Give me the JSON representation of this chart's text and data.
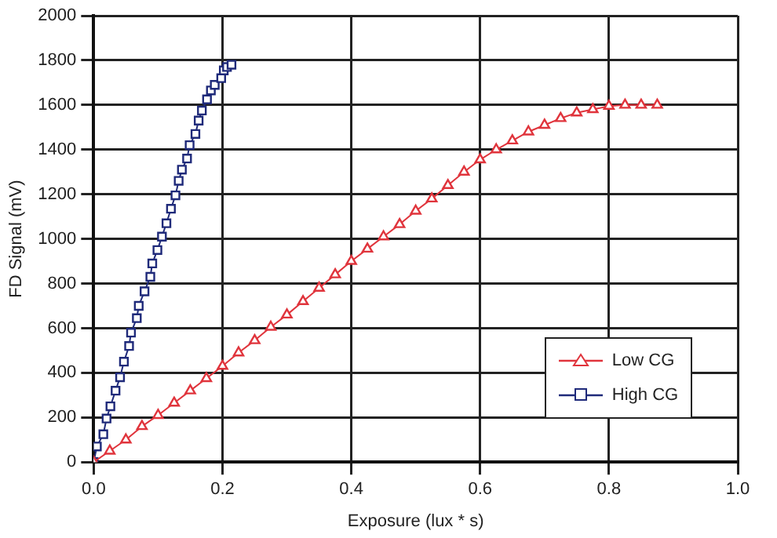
{
  "chart_data": {
    "type": "line",
    "xlabel": "Exposure (lux * s)",
    "ylabel": "FD Signal (mV)",
    "xlim": [
      0,
      1
    ],
    "xticks": [
      {
        "value": 0,
        "label": "0.0"
      },
      {
        "value": 0.2,
        "label": "0.2"
      },
      {
        "value": 0.4,
        "label": "0.4"
      },
      {
        "value": 0.6,
        "label": "0.6"
      },
      {
        "value": 0.8,
        "label": "0.8"
      },
      {
        "value": 1,
        "label": "1.0"
      }
    ],
    "ylim": [
      0,
      2000
    ],
    "yticks": [
      0,
      200,
      400,
      600,
      800,
      1000,
      1200,
      1400,
      1600,
      1800,
      2000
    ],
    "grid": true,
    "legend": "right",
    "series": [
      {
        "name": "Low CG",
        "color": "#e0343c",
        "marker": "triangle",
        "x": [
          0,
          0.025,
          0.05,
          0.075,
          0.1,
          0.125,
          0.15,
          0.175,
          0.2,
          0.225,
          0.25,
          0.275,
          0.3,
          0.325,
          0.35,
          0.375,
          0.4,
          0.425,
          0.45,
          0.475,
          0.5,
          0.525,
          0.55,
          0.575,
          0.6,
          0.625,
          0.65,
          0.675,
          0.7,
          0.725,
          0.75,
          0.775,
          0.8,
          0.825,
          0.85,
          0.875
        ],
        "values": [
          0,
          50,
          100,
          160,
          210,
          265,
          320,
          375,
          430,
          490,
          545,
          605,
          660,
          720,
          780,
          840,
          900,
          955,
          1010,
          1065,
          1125,
          1180,
          1240,
          1300,
          1355,
          1400,
          1440,
          1480,
          1510,
          1540,
          1565,
          1580,
          1595,
          1600,
          1600,
          1600
        ]
      },
      {
        "name": "High CG",
        "color": "#1f2a7a",
        "marker": "square",
        "x": [
          0,
          0.005,
          0.015,
          0.02,
          0.026,
          0.034,
          0.041,
          0.047,
          0.055,
          0.058,
          0.067,
          0.07,
          0.079,
          0.088,
          0.091,
          0.099,
          0.106,
          0.113,
          0.12,
          0.127,
          0.132,
          0.137,
          0.145,
          0.149,
          0.158,
          0.163,
          0.168,
          0.176,
          0.182,
          0.188,
          0.198,
          0.202,
          0.207,
          0.214
        ],
        "values": [
          0,
          70,
          125,
          195,
          250,
          320,
          380,
          450,
          520,
          580,
          645,
          700,
          765,
          830,
          890,
          950,
          1010,
          1070,
          1135,
          1195,
          1260,
          1310,
          1360,
          1420,
          1470,
          1530,
          1575,
          1625,
          1665,
          1690,
          1720,
          1755,
          1770,
          1780
        ]
      }
    ]
  }
}
